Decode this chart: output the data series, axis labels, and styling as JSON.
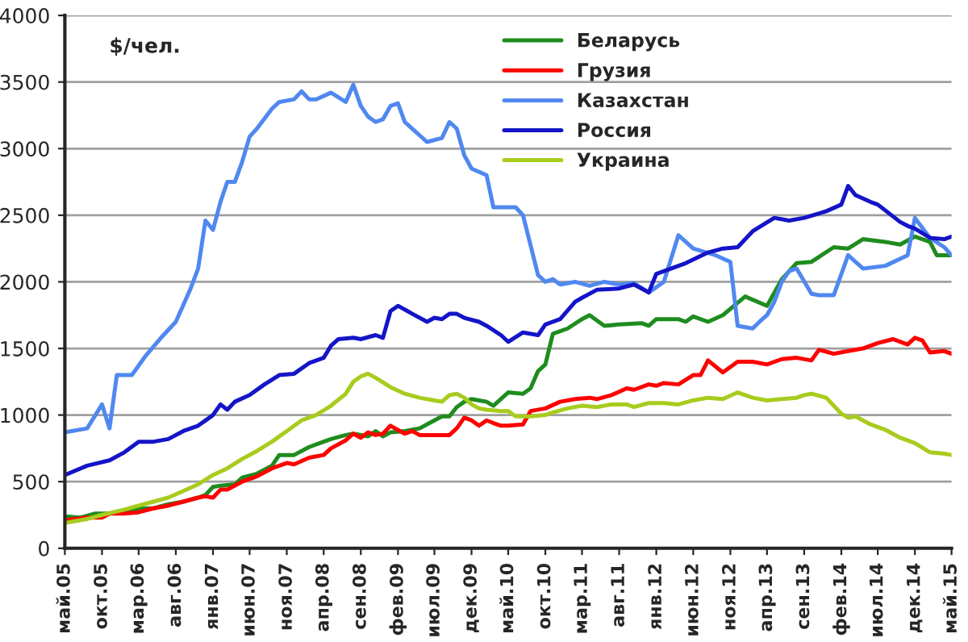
{
  "chart_data": {
    "type": "line",
    "ylabel": "$/чел.",
    "xlim": [
      "2005-05",
      "2015-05"
    ],
    "xticks": [
      {
        "value": "2005-05",
        "label": "май.05"
      },
      {
        "value": "2005-10",
        "label": "окт.05"
      },
      {
        "value": "2006-03",
        "label": "мар.06"
      },
      {
        "value": "2006-08",
        "label": "авг.06"
      },
      {
        "value": "2007-01",
        "label": "янв.07"
      },
      {
        "value": "2007-06",
        "label": "июн.07"
      },
      {
        "value": "2007-11",
        "label": "ноя.07"
      },
      {
        "value": "2008-04",
        "label": "апр.08"
      },
      {
        "value": "2008-09",
        "label": "сен.08"
      },
      {
        "value": "2009-02",
        "label": "фев.09"
      },
      {
        "value": "2009-07",
        "label": "июл.09"
      },
      {
        "value": "2009-12",
        "label": "дек.09"
      },
      {
        "value": "2010-05",
        "label": "май.10"
      },
      {
        "value": "2010-10",
        "label": "окт.10"
      },
      {
        "value": "2011-03",
        "label": "мар.11"
      },
      {
        "value": "2011-08",
        "label": "авг.11"
      },
      {
        "value": "2012-01",
        "label": "янв.12"
      },
      {
        "value": "2012-06",
        "label": "июн.12"
      },
      {
        "value": "2012-11",
        "label": "ноя.12"
      },
      {
        "value": "2013-04",
        "label": "апр.13"
      },
      {
        "value": "2013-09",
        "label": "сен.13"
      },
      {
        "value": "2014-02",
        "label": "фев.14"
      },
      {
        "value": "2014-07",
        "label": "июл.14"
      },
      {
        "value": "2014-12",
        "label": "дек.14"
      },
      {
        "value": "2015-05",
        "label": "май.15"
      }
    ],
    "ylim": [
      0,
      4000
    ],
    "yticks": [
      0,
      500,
      1000,
      1500,
      2000,
      2500,
      3000,
      3500,
      4000
    ],
    "grid": "y",
    "legend": "top",
    "marker": "none",
    "line_style": "solid",
    "series": [
      {
        "name": "Беларусь",
        "color": "#1e8c1e",
        "x": [
          "2005-05",
          "2005-07",
          "2005-09",
          "2005-11",
          "2006-01",
          "2006-03",
          "2006-05",
          "2006-07",
          "2006-09",
          "2006-11",
          "2006-12",
          "2007-01",
          "2007-02",
          "2007-04",
          "2007-05",
          "2007-07",
          "2007-09",
          "2007-10",
          "2007-12",
          "2008-02",
          "2008-04",
          "2008-05",
          "2008-07",
          "2008-08",
          "2008-10",
          "2008-11",
          "2008-12",
          "2009-01",
          "2009-03",
          "2009-05",
          "2009-07",
          "2009-08",
          "2009-09",
          "2009-10",
          "2009-11",
          "2009-12",
          "2010-01",
          "2010-02",
          "2010-03",
          "2010-05",
          "2010-07",
          "2010-08",
          "2010-09",
          "2010-10",
          "2010-11",
          "2011-01",
          "2011-03",
          "2011-04",
          "2011-06",
          "2011-08",
          "2011-11",
          "2011-12",
          "2012-01",
          "2012-04",
          "2012-05",
          "2012-06",
          "2012-08",
          "2012-10",
          "2013-01",
          "2013-04",
          "2013-06",
          "2013-08",
          "2013-10",
          "2014-01",
          "2014-03",
          "2014-05",
          "2014-08",
          "2014-10",
          "2014-12",
          "2015-02",
          "2015-03",
          "2015-05"
        ],
        "values": [
          240,
          230,
          260,
          260,
          270,
          300,
          300,
          330,
          350,
          380,
          400,
          460,
          470,
          480,
          530,
          560,
          620,
          700,
          700,
          760,
          800,
          820,
          850,
          860,
          840,
          880,
          840,
          870,
          880,
          900,
          960,
          990,
          990,
          1060,
          1100,
          1120,
          1110,
          1100,
          1070,
          1170,
          1160,
          1200,
          1330,
          1380,
          1610,
          1650,
          1720,
          1750,
          1670,
          1680,
          1690,
          1670,
          1720,
          1720,
          1700,
          1740,
          1700,
          1750,
          1890,
          1820,
          2020,
          2140,
          2150,
          2260,
          2250,
          2320,
          2300,
          2280,
          2340,
          2300,
          2200,
          2200
        ]
      },
      {
        "name": "Грузия",
        "color": "#ff0000",
        "x": [
          "2005-05",
          "2005-08",
          "2005-10",
          "2005-11",
          "2006-01",
          "2006-03",
          "2006-05",
          "2006-07",
          "2006-09",
          "2006-11",
          "2006-12",
          "2007-01",
          "2007-02",
          "2007-03",
          "2007-05",
          "2007-07",
          "2007-09",
          "2007-11",
          "2007-12",
          "2008-02",
          "2008-04",
          "2008-05",
          "2008-07",
          "2008-08",
          "2008-09",
          "2008-10",
          "2008-11",
          "2008-12",
          "2009-01",
          "2009-03",
          "2009-04",
          "2009-05",
          "2009-07",
          "2009-09",
          "2009-10",
          "2009-11",
          "2009-12",
          "2010-01",
          "2010-02",
          "2010-03",
          "2010-04",
          "2010-05",
          "2010-07",
          "2010-08",
          "2010-10",
          "2010-12",
          "2011-02",
          "2011-04",
          "2011-05",
          "2011-07",
          "2011-09",
          "2011-10",
          "2011-12",
          "2012-01",
          "2012-02",
          "2012-04",
          "2012-06",
          "2012-07",
          "2012-08",
          "2012-10",
          "2012-12",
          "2013-02",
          "2013-04",
          "2013-06",
          "2013-08",
          "2013-10",
          "2013-11",
          "2014-01",
          "2014-03",
          "2014-05",
          "2014-07",
          "2014-09",
          "2014-11",
          "2014-12",
          "2015-01",
          "2015-02",
          "2015-04",
          "2015-05"
        ],
        "values": [
          210,
          230,
          230,
          260,
          260,
          270,
          300,
          320,
          350,
          380,
          390,
          380,
          440,
          440,
          500,
          540,
          600,
          640,
          630,
          680,
          700,
          750,
          810,
          860,
          830,
          870,
          850,
          860,
          920,
          860,
          880,
          850,
          850,
          850,
          900,
          980,
          960,
          920,
          960,
          940,
          920,
          920,
          930,
          1030,
          1050,
          1100,
          1120,
          1130,
          1120,
          1150,
          1200,
          1190,
          1230,
          1220,
          1240,
          1230,
          1300,
          1300,
          1410,
          1320,
          1400,
          1400,
          1380,
          1420,
          1430,
          1410,
          1490,
          1460,
          1480,
          1500,
          1540,
          1570,
          1530,
          1580,
          1560,
          1470,
          1480,
          1460
        ]
      },
      {
        "name": "Казахстан",
        "color": "#5088f0",
        "x": [
          "2005-05",
          "2005-08",
          "2005-10",
          "2005-11",
          "2005-12",
          "2006-02",
          "2006-04",
          "2006-06",
          "2006-08",
          "2006-10",
          "2006-11",
          "2006-12",
          "2007-01",
          "2007-02",
          "2007-03",
          "2007-04",
          "2007-05",
          "2007-06",
          "2007-07",
          "2007-09",
          "2007-10",
          "2007-12",
          "2008-01",
          "2008-02",
          "2008-03",
          "2008-05",
          "2008-07",
          "2008-08",
          "2008-09",
          "2008-10",
          "2008-11",
          "2008-12",
          "2009-01",
          "2009-02",
          "2009-03",
          "2009-05",
          "2009-06",
          "2009-08",
          "2009-09",
          "2009-10",
          "2009-11",
          "2009-12",
          "2010-02",
          "2010-03",
          "2010-06",
          "2010-07",
          "2010-09",
          "2010-10",
          "2010-11",
          "2010-12",
          "2011-02",
          "2011-04",
          "2011-06",
          "2011-08",
          "2011-10",
          "2011-12",
          "2012-02",
          "2012-04",
          "2012-06",
          "2012-09",
          "2012-11",
          "2012-12",
          "2013-02",
          "2013-03",
          "2013-04",
          "2013-05",
          "2013-06",
          "2013-07",
          "2013-08",
          "2013-10",
          "2013-11",
          "2014-01",
          "2014-03",
          "2014-05",
          "2014-08",
          "2014-11",
          "2014-12",
          "2015-02",
          "2015-04",
          "2015-05"
        ],
        "values": [
          870,
          900,
          1080,
          900,
          1300,
          1300,
          1450,
          1580,
          1700,
          1950,
          2100,
          2460,
          2390,
          2600,
          2750,
          2750,
          2900,
          3090,
          3150,
          3300,
          3350,
          3370,
          3430,
          3370,
          3370,
          3420,
          3350,
          3480,
          3320,
          3240,
          3200,
          3220,
          3320,
          3340,
          3200,
          3100,
          3050,
          3080,
          3200,
          3150,
          2950,
          2850,
          2800,
          2560,
          2560,
          2500,
          2050,
          2000,
          2020,
          1980,
          2000,
          1970,
          2000,
          1980,
          1990,
          1920,
          2000,
          2350,
          2250,
          2200,
          2150,
          1670,
          1650,
          1700,
          1750,
          1850,
          2000,
          2080,
          2100,
          1910,
          1900,
          1900,
          2200,
          2100,
          2120,
          2200,
          2480,
          2330,
          2260,
          2200
        ]
      },
      {
        "name": "Россия",
        "color": "#1414c8",
        "x": [
          "2005-05",
          "2005-08",
          "2005-11",
          "2006-01",
          "2006-03",
          "2006-05",
          "2006-07",
          "2006-09",
          "2006-11",
          "2007-01",
          "2007-02",
          "2007-03",
          "2007-04",
          "2007-06",
          "2007-08",
          "2007-10",
          "2007-12",
          "2008-02",
          "2008-04",
          "2008-05",
          "2008-06",
          "2008-08",
          "2008-09",
          "2008-11",
          "2008-12",
          "2009-01",
          "2009-02",
          "2009-04",
          "2009-06",
          "2009-07",
          "2009-08",
          "2009-09",
          "2009-10",
          "2009-11",
          "2010-01",
          "2010-02",
          "2010-04",
          "2010-05",
          "2010-07",
          "2010-09",
          "2010-10",
          "2010-12",
          "2011-02",
          "2011-03",
          "2011-05",
          "2011-08",
          "2011-10",
          "2011-12",
          "2012-01",
          "2012-05",
          "2012-08",
          "2012-10",
          "2012-12",
          "2013-02",
          "2013-05",
          "2013-07",
          "2013-09",
          "2013-12",
          "2014-02",
          "2014-03",
          "2014-04",
          "2014-06",
          "2014-07",
          "2014-10",
          "2014-11",
          "2014-12",
          "2015-02",
          "2015-04",
          "2015-05"
        ],
        "values": [
          550,
          620,
          660,
          720,
          800,
          800,
          820,
          880,
          920,
          1000,
          1080,
          1040,
          1100,
          1150,
          1230,
          1300,
          1310,
          1390,
          1430,
          1520,
          1570,
          1580,
          1570,
          1600,
          1580,
          1780,
          1820,
          1760,
          1700,
          1730,
          1720,
          1760,
          1760,
          1730,
          1700,
          1670,
          1600,
          1550,
          1620,
          1600,
          1680,
          1720,
          1850,
          1880,
          1940,
          1950,
          1980,
          1920,
          2060,
          2140,
          2220,
          2250,
          2260,
          2380,
          2480,
          2460,
          2480,
          2530,
          2580,
          2720,
          2650,
          2600,
          2580,
          2450,
          2420,
          2400,
          2330,
          2320,
          2340
        ]
      },
      {
        "name": "Украина",
        "color": "#a8cc1e",
        "x": [
          "2005-05",
          "2005-08",
          "2005-10",
          "2006-01",
          "2006-03",
          "2006-05",
          "2006-07",
          "2006-09",
          "2006-11",
          "2007-01",
          "2007-03",
          "2007-05",
          "2007-07",
          "2007-09",
          "2007-11",
          "2008-01",
          "2008-03",
          "2008-05",
          "2008-07",
          "2008-08",
          "2008-09",
          "2008-10",
          "2008-11",
          "2009-01",
          "2009-03",
          "2009-05",
          "2009-07",
          "2009-08",
          "2009-09",
          "2009-10",
          "2009-11",
          "2009-12",
          "2010-01",
          "2010-02",
          "2010-04",
          "2010-05",
          "2010-06",
          "2010-08",
          "2010-10",
          "2010-11",
          "2011-01",
          "2011-03",
          "2011-05",
          "2011-07",
          "2011-09",
          "2011-10",
          "2011-12",
          "2012-02",
          "2012-04",
          "2012-06",
          "2012-08",
          "2012-10",
          "2012-12",
          "2013-02",
          "2013-04",
          "2013-06",
          "2013-08",
          "2013-09",
          "2013-10",
          "2013-12",
          "2014-01",
          "2014-02",
          "2014-03",
          "2014-04",
          "2014-06",
          "2014-08",
          "2014-10",
          "2014-12",
          "2015-02",
          "2015-04",
          "2015-05"
        ],
        "values": [
          190,
          220,
          250,
          290,
          320,
          350,
          380,
          430,
          480,
          550,
          600,
          670,
          730,
          800,
          880,
          960,
          1000,
          1070,
          1160,
          1250,
          1290,
          1310,
          1280,
          1210,
          1160,
          1130,
          1110,
          1100,
          1150,
          1160,
          1130,
          1080,
          1050,
          1040,
          1030,
          1030,
          990,
          990,
          1000,
          1020,
          1050,
          1070,
          1060,
          1080,
          1080,
          1060,
          1090,
          1090,
          1080,
          1110,
          1130,
          1120,
          1170,
          1130,
          1110,
          1120,
          1130,
          1150,
          1160,
          1130,
          1070,
          1010,
          980,
          990,
          930,
          890,
          830,
          790,
          720,
          710,
          700
        ]
      }
    ]
  }
}
